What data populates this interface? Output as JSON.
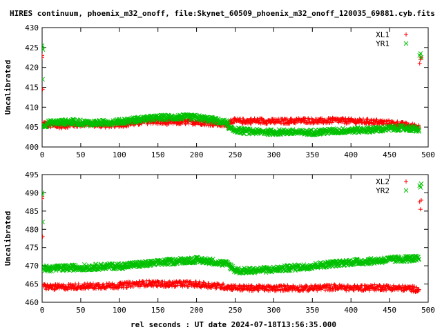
{
  "figure": {
    "title": "HIRES continuum, phoenix_m32_onoff, file:Skynet_60509_phoenix_m32_onoff_120035_69881.cyb.fits",
    "xlabel": "rel seconds : UT date 2024-07-18T13:56:35.000"
  },
  "colors": {
    "red": "#ff0000",
    "green": "#00c000",
    "axis": "#000000"
  },
  "chart_data": [
    {
      "type": "scatter",
      "ylabel": "Uncalibrated",
      "xlim": [
        0,
        500
      ],
      "ylim": [
        400,
        430
      ],
      "xticks": [
        0,
        50,
        100,
        150,
        200,
        250,
        300,
        350,
        400,
        450,
        500
      ],
      "yticks": [
        400,
        405,
        410,
        415,
        420,
        425,
        430
      ],
      "legend": "top-right",
      "series": [
        {
          "name": "XL1",
          "marker": "plus",
          "color": "#ff0000",
          "points": [
            [
              0,
              423
            ],
            [
              0,
              422.5
            ],
            [
              0.5,
              414.5
            ],
            [
              2,
              406
            ],
            [
              8,
              405.5
            ],
            [
              20,
              405.3
            ],
            [
              40,
              405.6
            ],
            [
              60,
              405.8
            ],
            [
              80,
              405.5
            ],
            [
              100,
              405.7
            ],
            [
              120,
              406
            ],
            [
              140,
              406.5
            ],
            [
              160,
              406.2
            ],
            [
              180,
              406.3
            ],
            [
              200,
              406.3
            ],
            [
              220,
              406
            ],
            [
              240,
              405.5
            ],
            [
              242,
              406.5
            ],
            [
              260,
              406.5
            ],
            [
              280,
              406.6
            ],
            [
              300,
              406.4
            ],
            [
              320,
              406.5
            ],
            [
              340,
              406.7
            ],
            [
              360,
              406.5
            ],
            [
              380,
              406.7
            ],
            [
              400,
              406.5
            ],
            [
              420,
              406.4
            ],
            [
              440,
              406.2
            ],
            [
              460,
              405.8
            ],
            [
              480,
              405.2
            ],
            [
              488,
              405
            ],
            [
              489,
              421
            ],
            [
              490,
              422
            ],
            [
              491,
              422.5
            ]
          ]
        },
        {
          "name": "YR1",
          "marker": "cross",
          "color": "#00c000",
          "points": [
            [
              0,
              425.5
            ],
            [
              0,
              425
            ],
            [
              0.5,
              417
            ],
            [
              1,
              424.5
            ],
            [
              2,
              405.5
            ],
            [
              8,
              406
            ],
            [
              20,
              406.2
            ],
            [
              40,
              406.3
            ],
            [
              60,
              406
            ],
            [
              80,
              406.1
            ],
            [
              100,
              406.4
            ],
            [
              120,
              406.8
            ],
            [
              140,
              407.2
            ],
            [
              160,
              407.4
            ],
            [
              180,
              407.5
            ],
            [
              200,
              407.4
            ],
            [
              220,
              406.8
            ],
            [
              240,
              406
            ],
            [
              242,
              404.5
            ],
            [
              260,
              404
            ],
            [
              280,
              403.8
            ],
            [
              300,
              403.7
            ],
            [
              320,
              403.8
            ],
            [
              340,
              403.6
            ],
            [
              360,
              403.8
            ],
            [
              380,
              404
            ],
            [
              400,
              404.2
            ],
            [
              420,
              404.3
            ],
            [
              440,
              404.5
            ],
            [
              460,
              404.8
            ],
            [
              480,
              404.6
            ],
            [
              488,
              404.2
            ],
            [
              489,
              423
            ],
            [
              490,
              423.5
            ],
            [
              491,
              422.5
            ]
          ]
        }
      ]
    },
    {
      "type": "scatter",
      "ylabel": "Uncalibrated",
      "xlim": [
        0,
        500
      ],
      "ylim": [
        460,
        495
      ],
      "xticks": [
        0,
        50,
        100,
        150,
        200,
        250,
        300,
        350,
        400,
        450,
        500
      ],
      "yticks": [
        460,
        465,
        470,
        475,
        480,
        485,
        490,
        495
      ],
      "legend": "top-right",
      "series": [
        {
          "name": "XL2",
          "marker": "plus",
          "color": "#ff0000",
          "points": [
            [
              0,
              488.5
            ],
            [
              0,
              489
            ],
            [
              0.5,
              478
            ],
            [
              2,
              464.3
            ],
            [
              8,
              464.2
            ],
            [
              20,
              464.1
            ],
            [
              40,
              464.3
            ],
            [
              60,
              464.4
            ],
            [
              80,
              464.5
            ],
            [
              100,
              464.6
            ],
            [
              120,
              465
            ],
            [
              140,
              465.2
            ],
            [
              160,
              464.9
            ],
            [
              180,
              465.1
            ],
            [
              200,
              464.9
            ],
            [
              220,
              464.6
            ],
            [
              240,
              464.2
            ],
            [
              260,
              463.9
            ],
            [
              280,
              463.9
            ],
            [
              300,
              463.8
            ],
            [
              320,
              464
            ],
            [
              340,
              463.8
            ],
            [
              360,
              464
            ],
            [
              380,
              464.1
            ],
            [
              400,
              463.9
            ],
            [
              420,
              464
            ],
            [
              440,
              464.1
            ],
            [
              460,
              463.9
            ],
            [
              480,
              463.7
            ],
            [
              488,
              463.5
            ],
            [
              489,
              487.5
            ],
            [
              490,
              485.5
            ],
            [
              491,
              488
            ]
          ]
        },
        {
          "name": "YR2",
          "marker": "cross",
          "color": "#00c000",
          "points": [
            [
              0,
              490
            ],
            [
              0,
              489.5
            ],
            [
              0.5,
              482
            ],
            [
              2,
              469.3
            ],
            [
              8,
              469.2
            ],
            [
              20,
              469.3
            ],
            [
              40,
              469.5
            ],
            [
              60,
              469.6
            ],
            [
              80,
              469.8
            ],
            [
              100,
              469.9
            ],
            [
              120,
              470.3
            ],
            [
              140,
              470.6
            ],
            [
              160,
              471
            ],
            [
              180,
              471.4
            ],
            [
              200,
              471.6
            ],
            [
              220,
              471.2
            ],
            [
              240,
              470.4
            ],
            [
              250,
              468.8
            ],
            [
              260,
              468.6
            ],
            [
              280,
              468.8
            ],
            [
              300,
              469
            ],
            [
              320,
              469.4
            ],
            [
              340,
              469.7
            ],
            [
              360,
              470.2
            ],
            [
              380,
              470.6
            ],
            [
              400,
              471
            ],
            [
              420,
              471.2
            ],
            [
              440,
              471.5
            ],
            [
              460,
              471.8
            ],
            [
              480,
              472
            ],
            [
              488,
              471.8
            ],
            [
              489,
              492
            ],
            [
              490,
              491.5
            ],
            [
              491,
              492.5
            ]
          ]
        }
      ]
    }
  ]
}
